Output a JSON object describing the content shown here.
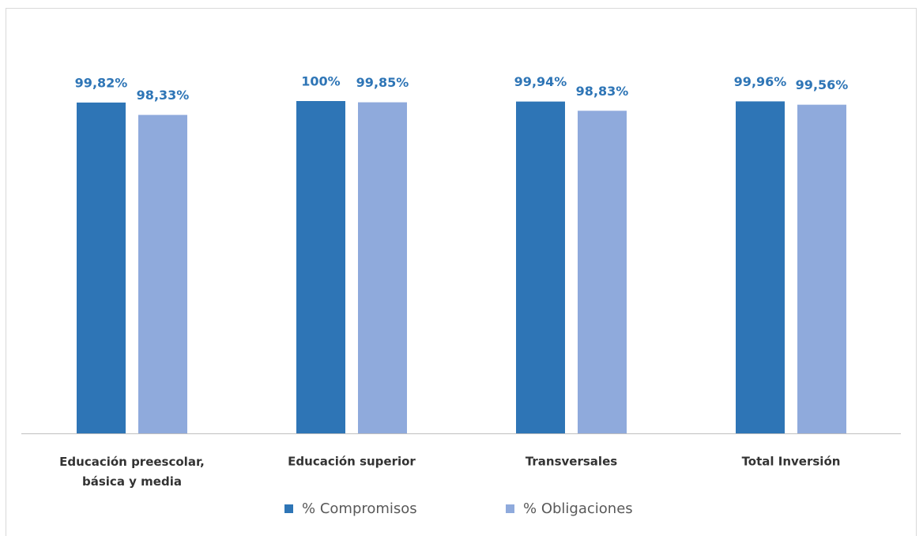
{
  "chart_data": {
    "type": "bar",
    "categories": [
      "Educación preescolar,\nbásica y media",
      "Educación superior",
      "Transversales",
      "Total Inversión"
    ],
    "series": [
      {
        "name": "% Compromisos",
        "color": "#2e75b6",
        "values": [
          99.82,
          100,
          99.94,
          99.96
        ],
        "value_labels": [
          "99,82%",
          "100%",
          "99,94%",
          "99,96%"
        ]
      },
      {
        "name": "% Obligaciones",
        "color": "#8faadc",
        "values": [
          98.33,
          99.85,
          98.83,
          99.56
        ],
        "value_labels": [
          "98,33%",
          "99,85%",
          "98,83%",
          "99,56%"
        ]
      }
    ],
    "ylim": [
      60,
      100
    ]
  }
}
